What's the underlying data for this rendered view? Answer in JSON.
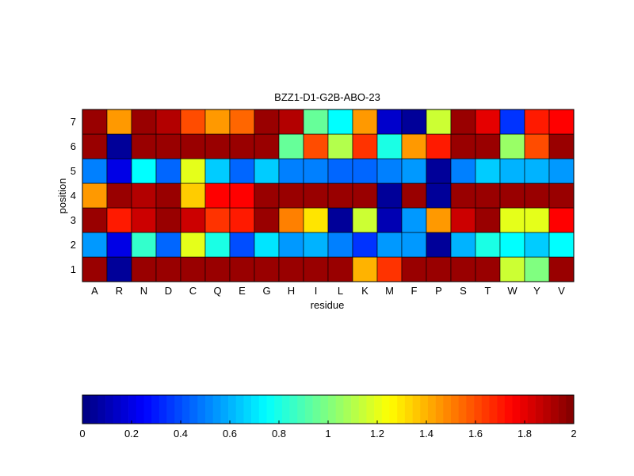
{
  "chart_data": {
    "type": "heatmap",
    "title": "BZZ1-D1-G2B-ABO-23",
    "xlabel": "residue",
    "ylabel": "position",
    "x_categories": [
      "A",
      "R",
      "N",
      "D",
      "C",
      "Q",
      "E",
      "G",
      "H",
      "I",
      "L",
      "K",
      "M",
      "F",
      "P",
      "S",
      "T",
      "W",
      "Y",
      "V"
    ],
    "y_categories": [
      "1",
      "2",
      "3",
      "4",
      "5",
      "6",
      "7"
    ],
    "values": [
      [
        1.95,
        0.05,
        1.95,
        1.95,
        1.95,
        1.95,
        1.95,
        1.95,
        1.95,
        1.95,
        1.95,
        1.4,
        1.65,
        1.95,
        1.95,
        1.95,
        1.95,
        1.15,
        1.0,
        1.95
      ],
      [
        0.55,
        0.2,
        0.85,
        0.45,
        1.2,
        0.8,
        0.4,
        0.7,
        0.55,
        0.6,
        0.5,
        0.35,
        0.55,
        0.55,
        0.05,
        0.6,
        0.8,
        0.75,
        0.65,
        0.75
      ],
      [
        1.95,
        1.7,
        1.85,
        1.95,
        1.85,
        1.65,
        1.7,
        1.95,
        1.5,
        1.3,
        0.05,
        1.15,
        0.1,
        0.55,
        1.45,
        1.85,
        1.95,
        1.2,
        1.2,
        1.75
      ],
      [
        1.45,
        1.95,
        1.9,
        1.95,
        1.35,
        1.75,
        1.75,
        1.95,
        1.95,
        1.95,
        1.95,
        1.95,
        0.05,
        1.95,
        0.05,
        1.95,
        1.95,
        1.95,
        1.95,
        1.95
      ],
      [
        0.5,
        0.2,
        0.75,
        0.45,
        1.2,
        0.65,
        0.45,
        0.65,
        0.5,
        0.5,
        0.45,
        0.45,
        0.5,
        0.55,
        0.05,
        0.5,
        0.65,
        0.6,
        0.6,
        0.55
      ],
      [
        1.95,
        0.05,
        1.95,
        1.95,
        1.95,
        1.95,
        1.95,
        1.95,
        0.95,
        1.6,
        1.1,
        1.65,
        0.8,
        1.45,
        1.7,
        1.95,
        1.95,
        1.05,
        1.6,
        1.95
      ],
      [
        1.95,
        1.45,
        1.95,
        1.9,
        1.6,
        1.45,
        1.55,
        1.95,
        1.9,
        0.95,
        0.75,
        1.45,
        0.15,
        0.05,
        1.15,
        1.95,
        1.8,
        0.35,
        1.7,
        1.75
      ]
    ],
    "colorbar": {
      "min": 0,
      "max": 2,
      "ticks": [
        "0",
        "0.2",
        "0.4",
        "0.6",
        "0.8",
        "1",
        "1.2",
        "1.4",
        "1.6",
        "1.8",
        "2"
      ],
      "placement": "bottom",
      "colormap": "jet"
    }
  }
}
